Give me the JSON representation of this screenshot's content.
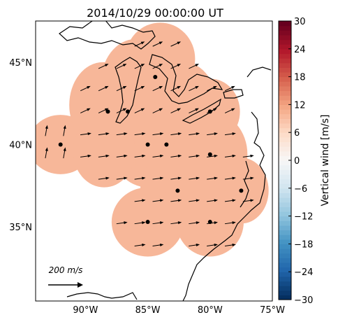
{
  "map": {
    "title": "2014/10/29 00:00:00 UT",
    "lon_range": [
      -94.0,
      -75.0
    ],
    "lat_range": [
      30.5,
      47.5
    ],
    "fill_value": 8,
    "fill_color": "#f7b799",
    "lat_ticks": [
      {
        "value": 45,
        "label": "45°N"
      },
      {
        "value": 40,
        "label": "40°N"
      },
      {
        "value": 35,
        "label": "35°N"
      }
    ],
    "lon_ticks": [
      {
        "value": -90,
        "label": "90°W"
      },
      {
        "value": -85,
        "label": "85°W"
      },
      {
        "value": -80,
        "label": "80°W"
      },
      {
        "value": -75,
        "label": "75°W"
      }
    ],
    "stations": [
      {
        "lon": -88.2,
        "lat": 42.0
      },
      {
        "lon": -86.6,
        "lat": 42.0
      },
      {
        "lon": -84.4,
        "lat": 44.1
      },
      {
        "lon": -80.0,
        "lat": 42.0
      },
      {
        "lon": -92.0,
        "lat": 40.0
      },
      {
        "lon": -85.0,
        "lat": 40.0
      },
      {
        "lon": -83.5,
        "lat": 40.0
      },
      {
        "lon": -80.0,
        "lat": 39.4
      },
      {
        "lon": -82.6,
        "lat": 37.2
      },
      {
        "lon": -77.5,
        "lat": 37.2
      },
      {
        "lon": -85.0,
        "lat": 35.3
      },
      {
        "lon": -80.0,
        "lat": 35.3
      }
    ],
    "scale_label": "200 m/s"
  },
  "colorbar": {
    "label": "Vertical wind [m/s]",
    "min": -30,
    "max": 30,
    "ticks": [
      "30",
      "24",
      "18",
      "12",
      "6",
      "0",
      "−6",
      "−12",
      "−18",
      "−24",
      "−30"
    ],
    "colors": [
      "#053061",
      "#2166ac",
      "#4393c3",
      "#92c5de",
      "#d1e5f0",
      "#f7f7f7",
      "#fddbc7",
      "#f4a582",
      "#d6604d",
      "#b2182b",
      "#67001f"
    ]
  }
}
